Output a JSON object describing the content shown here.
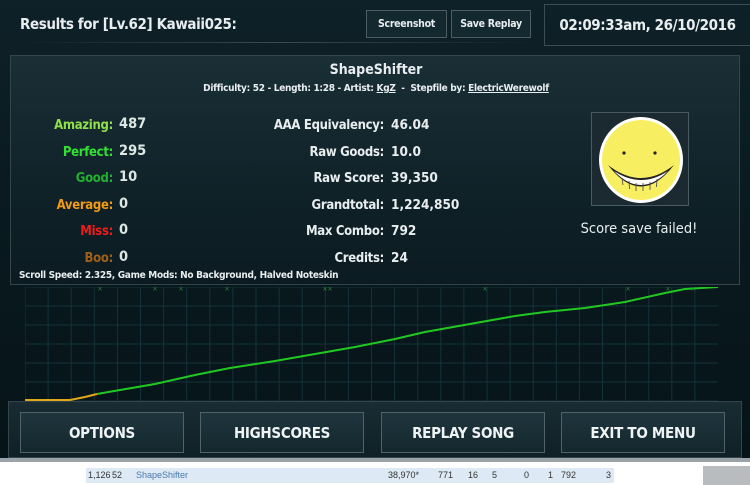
{
  "header": {
    "title": "Results for [Lv.62] Kawaii025:",
    "screenshot_label": "Screenshot",
    "save_replay_label": "Save Replay",
    "datetime": "02:09:33am, 26/10/2016"
  },
  "song": {
    "title": "ShapeShifter",
    "difficulty_text": "Difficulty: 52 - Length: 1:28 -  Artist: ",
    "artist": "KgZ",
    "stepfile_text": "  -  Stepfile by: ",
    "stepfile_author": "ElectricWerewolf"
  },
  "judgements": [
    {
      "label": "Amazing:",
      "value": "487",
      "color": "#8fe04a"
    },
    {
      "label": "Perfect:",
      "value": "295",
      "color": "#33e033"
    },
    {
      "label": "Good:",
      "value": "10",
      "color": "#22b030"
    },
    {
      "label": "Average:",
      "value": "0",
      "color": "#f09a18"
    },
    {
      "label": "Miss:",
      "value": "0",
      "color": "#ee1c1c"
    },
    {
      "label": "Boo:",
      "value": "0",
      "color": "#a0601a"
    }
  ],
  "stats": [
    {
      "label": "AAA Equivalency:",
      "value": "46.04"
    },
    {
      "label": "Raw Goods:",
      "value": "10.0"
    },
    {
      "label": "Raw Score:",
      "value": "39,350"
    },
    {
      "label": "Grandtotal:",
      "value": "1,224,850"
    },
    {
      "label": "Max Combo:",
      "value": "792"
    },
    {
      "label": "Credits:",
      "value": "24"
    }
  ],
  "avatar_icon": "smiling-face-icon",
  "save_status": "Score save failed!",
  "mods": "Scroll Speed: 2.325, Game Mods: No Background, Halved Noteskin",
  "buttons": {
    "options": "OPTIONS",
    "highscores": "HIGHSCORES",
    "replay": "REPLAY SONG",
    "exit": "EXIT TO MENU"
  },
  "score_row": {
    "rank": "1,126",
    "level": "52",
    "song": "ShapeShifter",
    "score": "38,970*",
    "c1": "771",
    "c2": "16",
    "c3": "5",
    "c4": "0",
    "c5": "1",
    "combo": "792",
    "c6": "3"
  },
  "colors": {
    "graph_good": "#22c822",
    "graph_early": "#e0a818",
    "miss_marker": "#2a8a3a"
  }
}
